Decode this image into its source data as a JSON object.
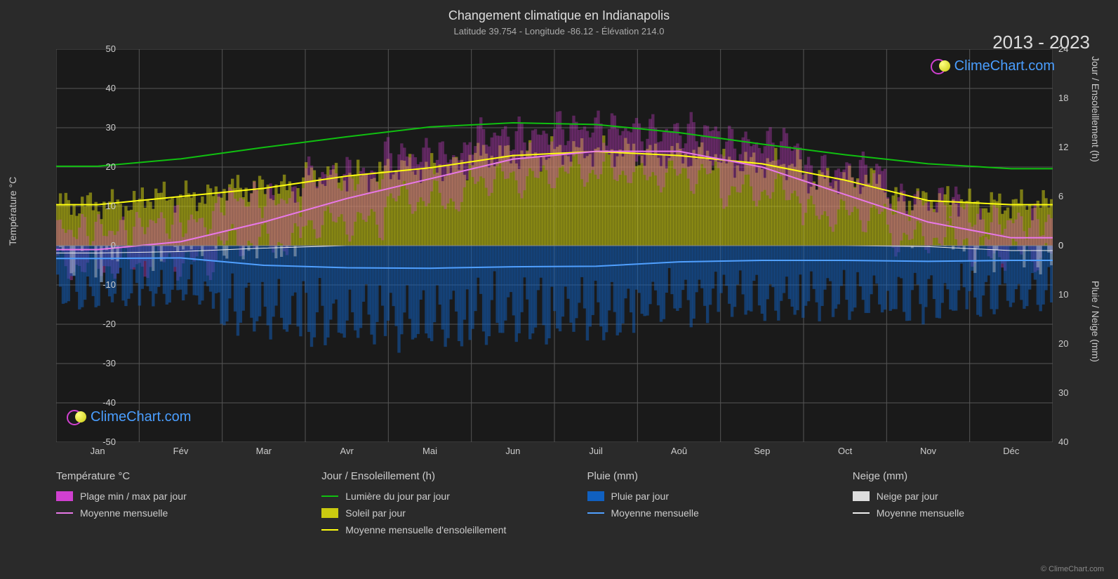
{
  "title": "Changement climatique en Indianapolis",
  "subtitle": "Latitude 39.754 - Longitude -86.12 - Élévation 214.0",
  "year_range": "2013 - 2023",
  "watermark_text": "ClimeChart.com",
  "copyright": "© ClimeChart.com",
  "axes": {
    "left_label": "Température °C",
    "right_top_label": "Jour / Ensoleillement (h)",
    "right_bottom_label": "Pluie / Neige (mm)",
    "left_ticks": [
      50,
      40,
      30,
      20,
      10,
      0,
      -10,
      -20,
      -30,
      -40,
      -50
    ],
    "right_top_ticks": [
      24,
      18,
      12,
      6,
      0
    ],
    "right_bottom_ticks": [
      0,
      10,
      20,
      30,
      40
    ],
    "x_labels": [
      "Jan",
      "Fév",
      "Mar",
      "Avr",
      "Mai",
      "Jun",
      "Juil",
      "Aoû",
      "Sep",
      "Oct",
      "Nov",
      "Déc"
    ]
  },
  "chart": {
    "type": "climate-composite",
    "background_color": "#1a1a1a",
    "grid_color": "#555555",
    "temp_ylim": [
      -50,
      50
    ],
    "hours_ylim": [
      0,
      24
    ],
    "precip_ylim": [
      0,
      40
    ],
    "colors": {
      "temp_range_fill": "#d040d0",
      "temp_avg_line": "#e878e8",
      "daylight_line": "#10c010",
      "sun_fill": "#caca10",
      "sun_avg_line": "#ffff10",
      "rain_fill": "#1060c0",
      "rain_avg_line": "#50a0ff",
      "snow_fill": "#dddddd",
      "snow_avg_line": "#eeeeee"
    },
    "months": [
      "Jan",
      "Fév",
      "Mar",
      "Avr",
      "Mai",
      "Jun",
      "Juil",
      "Aoû",
      "Sep",
      "Oct",
      "Nov",
      "Déc"
    ],
    "temp_min_monthly": [
      -5,
      -4,
      1,
      6,
      12,
      17,
      19,
      18,
      14,
      8,
      2,
      -2
    ],
    "temp_max_monthly": [
      4,
      6,
      12,
      18,
      23,
      28,
      30,
      29,
      26,
      19,
      11,
      6
    ],
    "temp_avg_monthly": [
      -1,
      1,
      6,
      12,
      17,
      22,
      24,
      24,
      20,
      13,
      6,
      2
    ],
    "daylight_hours": [
      9.7,
      10.6,
      12.0,
      13.3,
      14.5,
      15.0,
      14.8,
      13.8,
      12.4,
      11.1,
      10.0,
      9.4
    ],
    "sunshine_hours_avg": [
      5.0,
      6.0,
      7.0,
      8.5,
      9.5,
      11.0,
      11.5,
      11.0,
      10.0,
      8.0,
      5.5,
      5.0
    ],
    "rain_monthly_avg": [
      2.6,
      2.5,
      4.0,
      4.5,
      4.6,
      4.3,
      4.2,
      3.3,
      3.0,
      3.0,
      3.2,
      3.0
    ],
    "snow_monthly_avg": [
      1.5,
      1.2,
      0.5,
      0.0,
      0.0,
      0.0,
      0.0,
      0.0,
      0.0,
      0.0,
      0.2,
      1.0
    ],
    "line_width": 2,
    "title_fontsize": 18,
    "label_fontsize": 14,
    "tick_fontsize": 13
  },
  "legend": {
    "col1_header": "Température °C",
    "col1_item1": "Plage min / max par jour",
    "col1_item2": "Moyenne mensuelle",
    "col2_header": "Jour / Ensoleillement (h)",
    "col2_item1": "Lumière du jour par jour",
    "col2_item2": "Soleil par jour",
    "col2_item3": "Moyenne mensuelle d'ensoleillement",
    "col3_header": "Pluie (mm)",
    "col3_item1": "Pluie par jour",
    "col3_item2": "Moyenne mensuelle",
    "col4_header": "Neige (mm)",
    "col4_item1": "Neige par jour",
    "col4_item2": "Moyenne mensuelle"
  }
}
